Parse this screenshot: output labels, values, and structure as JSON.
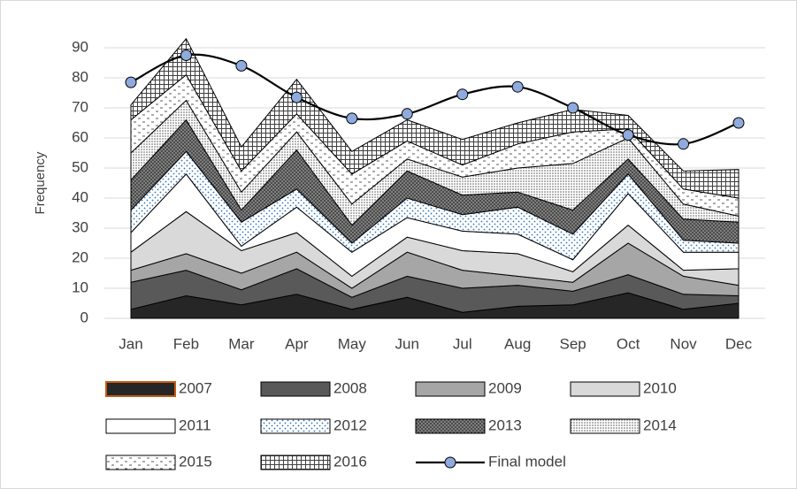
{
  "chart_data": {
    "type": "area",
    "stacked": true,
    "y_label": "Frequency",
    "categories": [
      "Jan",
      "Feb",
      "Mar",
      "Apr",
      "May",
      "Jun",
      "Jul",
      "Aug",
      "Sep",
      "Oct",
      "Nov",
      "Dec"
    ],
    "ylim": [
      0,
      90
    ],
    "yticks": [
      0,
      10,
      20,
      30,
      40,
      50,
      60,
      70,
      80,
      90
    ],
    "grid": true,
    "series": [
      {
        "name": "2007",
        "color": "#262626",
        "pattern": "solid",
        "values": [
          3,
          7.5,
          4.5,
          8,
          3,
          7,
          2,
          4,
          4.5,
          8.5,
          3,
          5
        ]
      },
      {
        "name": "2008",
        "color": "#595959",
        "pattern": "solid",
        "values": [
          9,
          8.5,
          5,
          8.5,
          4,
          7,
          8,
          7,
          4.5,
          6,
          5,
          2.5
        ]
      },
      {
        "name": "2009",
        "color": "#a6a6a6",
        "pattern": "solid",
        "values": [
          4,
          5.5,
          5.5,
          5.5,
          3,
          8,
          6,
          3,
          3,
          10.5,
          6,
          3.5
        ]
      },
      {
        "name": "2010",
        "color": "#d9d9d9",
        "pattern": "solid",
        "values": [
          6,
          14,
          7.5,
          6.5,
          4,
          5,
          6.5,
          7.5,
          3.5,
          6,
          2,
          5.5
        ]
      },
      {
        "name": "2011",
        "color": "#ffffff",
        "pattern": "solid",
        "values": [
          6.5,
          12.5,
          1.5,
          8.5,
          8,
          6.5,
          6.5,
          6.5,
          4,
          10.5,
          6,
          5.5
        ]
      },
      {
        "name": "2012",
        "color": "#2e75b6",
        "pattern": "sparse-dots",
        "values": [
          7.5,
          7.5,
          8,
          6,
          3,
          6.5,
          5.5,
          9,
          8.5,
          6.5,
          4,
          3
        ]
      },
      {
        "name": "2013",
        "color": "#404040",
        "pattern": "dark-dots",
        "values": [
          10,
          10.5,
          4,
          13,
          6,
          9,
          6.5,
          5,
          8,
          5,
          7,
          7
        ]
      },
      {
        "name": "2014",
        "color": "#595959",
        "pattern": "dense-dots",
        "values": [
          9,
          6.5,
          6,
          6,
          7,
          4,
          6,
          8,
          15.5,
          7,
          5,
          2
        ]
      },
      {
        "name": "2015",
        "color": "#595959",
        "pattern": "dashes",
        "values": [
          11,
          8.5,
          7,
          6,
          10,
          6,
          4,
          8,
          10.5,
          3,
          5,
          6
        ]
      },
      {
        "name": "2016",
        "color": "#404040",
        "pattern": "grid",
        "values": [
          5,
          12,
          8,
          11.5,
          7.5,
          7,
          8.5,
          7,
          7.5,
          4.5,
          6,
          9.5
        ]
      },
      {
        "name": "Final model",
        "type": "line",
        "color": "#000000",
        "marker_color": "#8faadc",
        "values": [
          78.5,
          87.5,
          84,
          73.5,
          66.5,
          68,
          74.5,
          77,
          70,
          61,
          58,
          65
        ]
      }
    ]
  }
}
